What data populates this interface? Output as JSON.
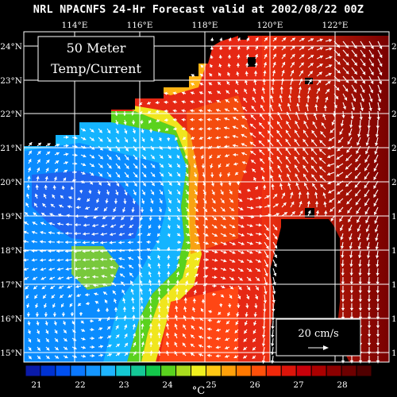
{
  "title": "NRL NPACNFS 24-Hr Forecast valid at 2002/08/22 00Z",
  "depth_box": {
    "line1": "50 Meter",
    "line2": "Temp/Current"
  },
  "scale_box": {
    "label": "20 cm/s"
  },
  "lon_labels": [
    "114°E",
    "116°E",
    "118°E",
    "120°E",
    "122°E"
  ],
  "lat_labels": [
    "24°N",
    "23°N",
    "22°N",
    "21°N",
    "20°N",
    "19°N",
    "18°N",
    "17°N",
    "16°N",
    "15°N"
  ],
  "colorbar": {
    "unit": "°C",
    "tick_labels": [
      "21",
      "22",
      "23",
      "24",
      "25",
      "26",
      "27",
      "28"
    ],
    "colors": [
      "#0a1aa8",
      "#0032d2",
      "#0050f0",
      "#0a78ff",
      "#1496ff",
      "#1eb4ff",
      "#14c8d2",
      "#14c896",
      "#14c84b",
      "#5ad21e",
      "#aadc1e",
      "#f0f01e",
      "#ffc814",
      "#ffa00a",
      "#ff7800",
      "#ff500a",
      "#f0280a",
      "#dc140a",
      "#c8000a",
      "#aa0000",
      "#8c0000",
      "#6e0000",
      "#500000"
    ]
  },
  "map": {
    "lon_range": [
      112.8,
      123.2
    ],
    "lat_range": [
      14.6,
      24.4
    ]
  },
  "colors": {
    "background": "#000000",
    "land": "#000000",
    "grid": "#ffffff",
    "vectors": "#ffffff"
  }
}
